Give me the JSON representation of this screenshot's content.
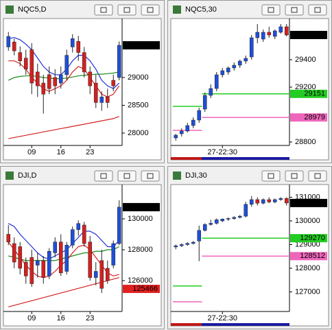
{
  "chart_data": [
    {
      "type": "candlestick",
      "title": "NQC5,D",
      "up_color": "#1f4fd8",
      "down_color": "#d42020",
      "categories": [
        null,
        null,
        null,
        null,
        "09",
        null,
        null,
        null,
        null,
        "16",
        null,
        null,
        null,
        null,
        "23",
        null,
        null,
        null,
        null,
        null
      ],
      "open": [
        29550,
        29640,
        29450,
        29350,
        29500,
        29100,
        28900,
        29050,
        29000,
        28900,
        29050,
        29550,
        29650,
        29450,
        29100,
        28900,
        28550,
        28650,
        28950,
        29000
      ],
      "high": [
        29820,
        29700,
        29560,
        29500,
        29620,
        29250,
        29050,
        29200,
        29150,
        29200,
        29500,
        29780,
        29750,
        29550,
        29200,
        29050,
        28750,
        28800,
        29050,
        29650
      ],
      "low": [
        29480,
        29400,
        29200,
        29050,
        28700,
        28650,
        28350,
        28700,
        28700,
        28800,
        28950,
        29450,
        29300,
        29000,
        28700,
        28450,
        28400,
        28450,
        28750,
        28950
      ],
      "close": [
        29740,
        29480,
        29300,
        29150,
        28900,
        28850,
        28700,
        28800,
        28850,
        29050,
        29400,
        29700,
        29450,
        29100,
        28850,
        28550,
        28650,
        28550,
        28850,
        29580
      ],
      "series": [
        {
          "color": "#1f2fd8",
          "values": [
            29700,
            29720,
            29680,
            29600,
            29500,
            29350,
            29200,
            29100,
            29050,
            29050,
            29150,
            29300,
            29400,
            29400,
            29300,
            29150,
            28950,
            28850,
            28800,
            28900
          ]
        },
        {
          "color": "#1a8a1a",
          "values": [
            28950,
            29000,
            29020,
            29030,
            29030,
            29020,
            29000,
            28990,
            28980,
            28980,
            28990,
            29010,
            29030,
            29040,
            29050,
            29060,
            29060,
            29070,
            29080,
            29100
          ]
        },
        {
          "color": "#d42020",
          "values": [
            29300,
            29300,
            29250,
            29150,
            29000,
            28900,
            28800,
            28750,
            28800,
            28850,
            28950,
            29100,
            29200,
            29150,
            29000,
            28850,
            28700,
            28650,
            28700,
            28850
          ]
        },
        {
          "color": "#d42020",
          "values": [
            27900,
            27920,
            27940,
            27960,
            27980,
            28000,
            28020,
            28040,
            28060,
            28080,
            28100,
            28120,
            28140,
            28160,
            28180,
            28200,
            28220,
            28240,
            28260,
            28300
          ]
        }
      ],
      "ylim": [
        27777,
        30025
      ],
      "yticks": [
        28000,
        28500,
        29000
      ],
      "price_tags": [
        {
          "value": 29580,
          "color": "#000000",
          "text_color": "#ffffff"
        }
      ]
    },
    {
      "type": "candlestick",
      "title": "NQC5,30",
      "up_color": "#1f4fd8",
      "down_color": "#d42020",
      "categories": [
        null,
        null,
        null,
        null,
        null,
        null,
        null,
        null,
        "27-22:30",
        null,
        null,
        null,
        null,
        null,
        null,
        null,
        null,
        null,
        null,
        null
      ],
      "open": [
        28830,
        28860,
        28880,
        28920,
        28960,
        29040,
        29140,
        29190,
        29290,
        29310,
        29340,
        29360,
        29390,
        29420,
        29560,
        29550,
        29600,
        29570,
        29600,
        29640
      ],
      "high": [
        28860,
        28900,
        28940,
        28980,
        29050,
        29160,
        29220,
        29310,
        29340,
        29350,
        29380,
        29400,
        29430,
        29580,
        29660,
        29620,
        29640,
        29620,
        29660,
        29660
      ],
      "low": [
        28810,
        28840,
        28870,
        28900,
        28940,
        29020,
        29120,
        29170,
        29270,
        29290,
        29320,
        29340,
        29370,
        29400,
        29520,
        29530,
        29560,
        29550,
        29590,
        29570
      ],
      "close": [
        28850,
        28880,
        28920,
        28960,
        29030,
        29140,
        29190,
        29290,
        29320,
        29340,
        29360,
        29390,
        29410,
        29560,
        29600,
        29600,
        29580,
        29610,
        29640,
        29580
      ],
      "levels": [
        {
          "color": "#22cc22",
          "values": [
            29060,
            29060,
            29060,
            29060,
            29060,
            29151,
            29151,
            29151,
            29151,
            29151,
            29151,
            29151,
            29151,
            29151,
            29151,
            29151,
            29151,
            29151,
            29151,
            29151
          ]
        },
        {
          "color": "#ee66bb",
          "values": [
            28885,
            28885,
            28885,
            28885,
            28885,
            28979,
            28979,
            28979,
            28979,
            28979,
            28979,
            28979,
            28979,
            28979,
            28979,
            28979,
            28979,
            28979,
            28979,
            28979
          ]
        }
      ],
      "ylim": [
        28775,
        29685
      ],
      "yticks": [
        28800,
        29200,
        29400
      ],
      "price_tags": [
        {
          "value": 29580,
          "color": "#000000",
          "text_color": "#ffffff"
        },
        {
          "value": 29151,
          "color": "#22cc22",
          "text_color": "#000000"
        },
        {
          "value": 28979,
          "color": "#ee66bb",
          "text_color": "#000000"
        }
      ]
    },
    {
      "type": "candlestick",
      "title": "DJI,D",
      "up_color": "#1f4fd8",
      "down_color": "#d42020",
      "categories": [
        null,
        null,
        null,
        null,
        "09",
        null,
        null,
        null,
        null,
        "16",
        null,
        null,
        null,
        null,
        "23",
        null,
        null,
        null,
        null,
        null
      ],
      "open": [
        129000,
        128400,
        128200,
        127200,
        127500,
        127000,
        127300,
        126300,
        127800,
        128500,
        126600,
        128300,
        129300,
        129600,
        128500,
        126200,
        127300,
        126800,
        127000,
        128400
      ],
      "high": [
        129600,
        128800,
        128500,
        127500,
        128000,
        127800,
        127600,
        128100,
        128800,
        129000,
        128500,
        129500,
        129900,
        129800,
        128900,
        127200,
        128000,
        127300,
        128600,
        131200
      ],
      "low": [
        128300,
        126800,
        126400,
        125800,
        125600,
        126200,
        125800,
        126100,
        127500,
        126300,
        126400,
        128100,
        128900,
        128200,
        126000,
        125700,
        125200,
        125800,
        126800,
        128300
      ],
      "close": [
        128500,
        127200,
        126800,
        126300,
        125800,
        127300,
        126200,
        127900,
        128500,
        126500,
        128300,
        129300,
        129700,
        128400,
        126200,
        126600,
        125500,
        126000,
        128400,
        130757
      ],
      "series": [
        {
          "color": "#1f2fd8",
          "values": [
            129700,
            129500,
            129000,
            128600,
            128200,
            127800,
            127500,
            127400,
            127600,
            127800,
            128000,
            128400,
            128800,
            129200,
            129200,
            129000,
            128600,
            128200,
            128200,
            128600
          ]
        },
        {
          "color": "#1a8a1a",
          "values": [
            127600,
            127500,
            127400,
            127300,
            127300,
            127300,
            127300,
            127300,
            127300,
            127400,
            127500,
            127600,
            127700,
            127800,
            127800,
            127900,
            127900,
            128000,
            128000,
            128200
          ]
        },
        {
          "color": "#d42020",
          "values": [
            128500,
            128000,
            127500,
            127000,
            126600,
            126300,
            126200,
            126300,
            126600,
            127000,
            127300,
            127800,
            128200,
            128300,
            128000,
            127500,
            127000,
            126500,
            126300,
            126400
          ]
        },
        {
          "color": "#d42020",
          "values": [
            124300,
            124400,
            124500,
            124600,
            124700,
            124800,
            124900,
            125000,
            125100,
            125200,
            125300,
            125400,
            125500,
            125600,
            125700,
            125800,
            125900,
            126000,
            126100,
            126200
          ]
        }
      ],
      "ylim": [
        124004,
        132085
      ],
      "yticks": [
        126000,
        128000,
        130000
      ],
      "price_tags": [
        {
          "value": 130757,
          "color": "#000000",
          "text_color": "#ffffff"
        },
        {
          "value": 125466,
          "color": "#e02020",
          "text_color": "#000000"
        }
      ]
    },
    {
      "type": "candlestick",
      "title": "DJI,30",
      "up_color": "#1f4fd8",
      "down_color": "#d42020",
      "categories": [
        null,
        null,
        null,
        null,
        null,
        null,
        null,
        null,
        "27-22:30",
        null,
        null,
        null,
        null,
        null,
        null,
        null,
        null,
        null,
        null,
        null
      ],
      "open": [
        128900,
        128950,
        129000,
        129050,
        129150,
        129600,
        129850,
        129900,
        130000,
        130080,
        130100,
        130150,
        130200,
        130700,
        130900,
        130750,
        130900,
        130800,
        130900,
        130950
      ],
      "high": [
        129000,
        129050,
        129100,
        129150,
        129800,
        129900,
        130050,
        130100,
        130100,
        130150,
        130200,
        130250,
        130800,
        131050,
        131000,
        130950,
        131000,
        130950,
        131000,
        131000
      ],
      "low": [
        128800,
        128900,
        128950,
        129000,
        128300,
        129550,
        129800,
        129850,
        129950,
        130000,
        130050,
        130100,
        130150,
        130600,
        130650,
        130700,
        130750,
        130750,
        130850,
        130650
      ],
      "close": [
        128950,
        129000,
        129050,
        129100,
        129600,
        129850,
        129900,
        130050,
        130080,
        130100,
        130150,
        130200,
        130700,
        130900,
        130750,
        130900,
        130800,
        130900,
        130950,
        130757
      ],
      "levels": [
        {
          "color": "#22cc22",
          "values": [
            127250,
            127250,
            127250,
            127250,
            127250,
            129270,
            129270,
            129270,
            129270,
            129270,
            129270,
            129270,
            129270,
            129270,
            129270,
            129270,
            129270,
            129270,
            129270,
            129270
          ]
        },
        {
          "color": "#ee66bb",
          "values": [
            126580,
            126580,
            126580,
            126580,
            126580,
            128512,
            128512,
            128512,
            128512,
            128512,
            128512,
            128512,
            128512,
            128512,
            128512,
            128512,
            128512,
            128512,
            128512,
            128512
          ]
        }
      ],
      "ylim": [
        126172,
        131450
      ],
      "yticks": [
        127000,
        128000,
        129000,
        130000,
        131000
      ],
      "price_tags": [
        {
          "value": 130757,
          "color": "#000000",
          "text_color": "#ffffff"
        },
        {
          "value": 129270,
          "color": "#22cc22",
          "text_color": "#000000"
        },
        {
          "value": 128512,
          "color": "#ee66bb",
          "text_color": "#000000"
        }
      ]
    }
  ]
}
